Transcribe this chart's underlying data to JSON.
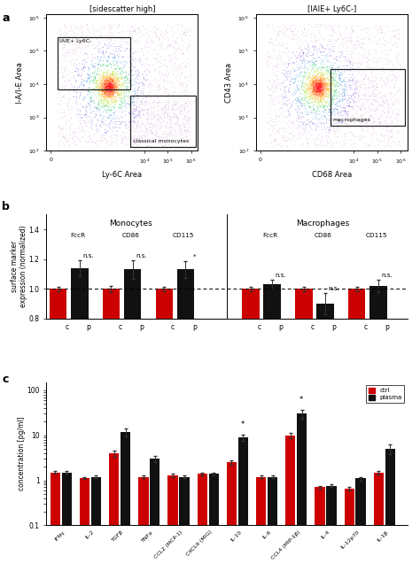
{
  "panel_a_left_title": "[sidescatter high]",
  "panel_a_right_title": "[IAIE+ Ly6C-]",
  "panel_a_left_xlabel": "Ly-6C Area",
  "panel_a_left_ylabel": "I-A/I-E Area",
  "panel_a_right_xlabel": "CD68 Area",
  "panel_a_right_ylabel": "CD43 Area",
  "panel_a_left_box1_label": "IAIE+ Ly6C-",
  "panel_a_left_box2_label": "classical monocytes",
  "panel_a_right_box_label": "macrophages",
  "panel_b_title_left": "Monocytes",
  "panel_b_title_right": "Macrophages",
  "panel_b_ylabel": "surface marker\nexpression (normalized)",
  "panel_b_groups": [
    "FccR",
    "CD86",
    "CD115",
    "FccR",
    "CD86",
    "CD115"
  ],
  "panel_b_c_values": [
    1.0,
    1.0,
    1.0,
    1.0,
    1.0,
    1.0
  ],
  "panel_b_p_values": [
    1.14,
    1.13,
    1.13,
    1.03,
    0.9,
    1.02
  ],
  "panel_b_c_err": [
    0.015,
    0.02,
    0.015,
    0.015,
    0.015,
    0.015
  ],
  "panel_b_p_err": [
    0.055,
    0.065,
    0.055,
    0.03,
    0.07,
    0.04
  ],
  "panel_b_sig": [
    "n.s.",
    "n.s.",
    "*",
    "n.s.",
    "n.s.",
    "n.s."
  ],
  "panel_b_ylim": [
    0.8,
    1.4
  ],
  "panel_b_yticks": [
    0.8,
    1.0,
    1.2,
    1.4
  ],
  "panel_c_ylabel": "concentration [pg/ml]",
  "panel_c_categories": [
    "IFNγ",
    "IL-2",
    "TGFβ",
    "TNFα",
    "CCL2 (MCP-1)",
    "CXCL9 (MIG)",
    "IL-10",
    "IL-6",
    "CCL4 (MIP-1β)",
    "IL-4",
    "IL-12p70",
    "IL-1β"
  ],
  "panel_c_ctrl": [
    1.5,
    1.1,
    4.0,
    1.2,
    1.3,
    1.4,
    2.5,
    1.2,
    10.0,
    0.7,
    0.65,
    1.5
  ],
  "panel_c_plasma": [
    1.5,
    1.2,
    12.0,
    3.0,
    1.2,
    1.4,
    9.0,
    1.2,
    30.0,
    0.75,
    1.1,
    5.0
  ],
  "panel_c_ctrl_err": [
    0.1,
    0.05,
    0.6,
    0.1,
    0.1,
    0.1,
    0.3,
    0.1,
    1.5,
    0.05,
    0.05,
    0.15
  ],
  "panel_c_plasma_err": [
    0.1,
    0.1,
    2.5,
    0.5,
    0.1,
    0.1,
    1.5,
    0.1,
    7.0,
    0.05,
    0.1,
    1.2
  ],
  "panel_c_sig": [
    null,
    null,
    null,
    null,
    null,
    null,
    "*",
    null,
    "*",
    null,
    null,
    null
  ],
  "color_red": "#cc0000",
  "color_black": "#111111"
}
